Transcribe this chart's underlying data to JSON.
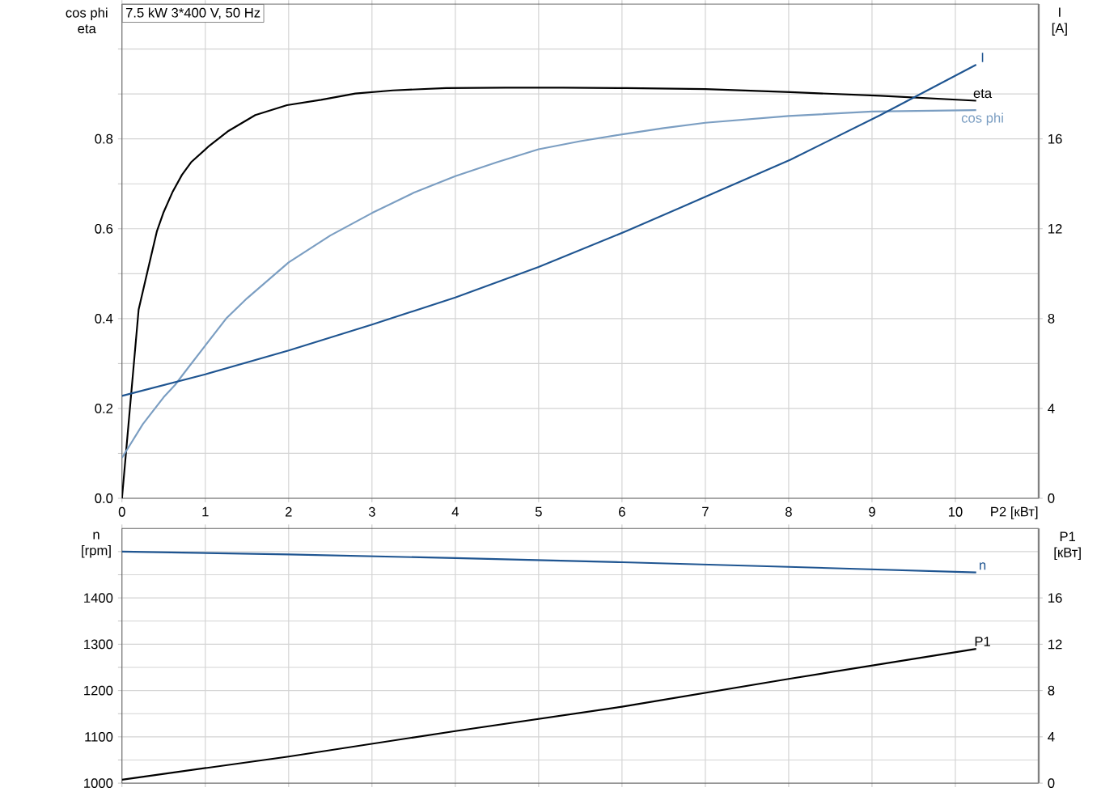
{
  "chart_data": [
    {
      "type": "line",
      "title": "7.5 kW 3*400 V, 50 Hz",
      "xlabel": "P2 [кВт]",
      "ylabel": "cos phi eta",
      "y2label": "I [A]",
      "xlim": [
        0,
        11
      ],
      "xticks": [
        0,
        1,
        2,
        3,
        4,
        5,
        6,
        7,
        8,
        9,
        10
      ],
      "ylim": [
        0,
        1.1
      ],
      "yticks": [
        {
          "value": 0,
          "label": "0.0"
        },
        {
          "value": 0.1,
          "label": null
        },
        {
          "value": 0.2,
          "label": "0.2"
        },
        {
          "value": 0.3,
          "label": null
        },
        {
          "value": 0.4,
          "label": "0.4"
        },
        {
          "value": 0.5,
          "label": null
        },
        {
          "value": 0.6,
          "label": "0.6"
        },
        {
          "value": 0.7,
          "label": null
        },
        {
          "value": 0.8,
          "label": "0.8"
        },
        {
          "value": 0.9,
          "label": null
        },
        {
          "value": 1.0,
          "label": null
        }
      ],
      "y2lim": [
        0,
        22
      ],
      "y2ticks": [
        0,
        4,
        8,
        12,
        16
      ],
      "grid": true,
      "series": [
        {
          "name": "eta",
          "color": "#000000",
          "x": [
            0,
            0.1,
            0.2,
            0.3,
            0.42,
            0.5,
            0.61,
            0.72,
            0.83,
            1.05,
            1.28,
            1.6,
            1.98,
            2.39,
            2.8,
            3.25,
            3.89,
            4.6,
            5.29,
            6.05,
            7.0,
            8.02,
            9.1,
            10.25
          ],
          "values": [
            0,
            0.21,
            0.42,
            0.5,
            0.595,
            0.637,
            0.683,
            0.72,
            0.748,
            0.785,
            0.818,
            0.853,
            0.875,
            0.887,
            0.901,
            0.908,
            0.913,
            0.914,
            0.914,
            0.913,
            0.911,
            0.904,
            0.896,
            0.885
          ]
        },
        {
          "name": "cos phi",
          "color": "#7b9ec2",
          "x": [
            0,
            0.25,
            0.5,
            0.64,
            0.75,
            1.0,
            1.25,
            1.5,
            1.75,
            2.0,
            2.5,
            3.0,
            3.5,
            4.0,
            4.5,
            5.0,
            5.5,
            6.0,
            6.5,
            7.0,
            8.0,
            9.0,
            10.25
          ],
          "values": [
            0.09,
            0.165,
            0.225,
            0.253,
            0.28,
            0.34,
            0.4,
            0.445,
            0.485,
            0.525,
            0.585,
            0.635,
            0.68,
            0.717,
            0.748,
            0.777,
            0.795,
            0.81,
            0.824,
            0.836,
            0.851,
            0.861,
            0.864
          ]
        },
        {
          "name": "I",
          "color": "#1f5591",
          "axis": "y2",
          "x": [
            0,
            1,
            2,
            3,
            4,
            5,
            6.05,
            7.0,
            8.02,
            9.1,
            10.25
          ],
          "values": [
            4.56,
            5.52,
            6.58,
            7.73,
            8.94,
            10.3,
            11.89,
            13.42,
            15.07,
            17.06,
            19.3
          ]
        }
      ]
    },
    {
      "type": "line",
      "ylabel": "n [rpm]",
      "y2label": "P1 [кВт]",
      "tick_labels": "y",
      "xlim": [
        0,
        11
      ],
      "xticks": [
        0,
        1,
        2,
        3,
        4,
        5,
        6,
        7,
        8,
        9,
        10
      ],
      "ylim": [
        1000,
        1550
      ],
      "yticks": [
        1000,
        {
          "value": 1050,
          "label": null
        },
        1100,
        {
          "value": 1150,
          "label": null
        },
        1200,
        {
          "value": 1250,
          "label": null
        },
        1300,
        {
          "value": 1350,
          "label": null
        },
        1400,
        {
          "value": 1450,
          "label": null
        },
        {
          "value": 1500,
          "label": null
        }
      ],
      "y2lim": [
        0,
        22
      ],
      "y2ticks": [
        0,
        4,
        8,
        12,
        16
      ],
      "grid": true,
      "series": [
        {
          "name": "n",
          "color": "#1f5591",
          "x": [
            0,
            2,
            4,
            6,
            8,
            10.25
          ],
          "values": [
            1500,
            1494,
            1486,
            1477,
            1467,
            1455
          ]
        },
        {
          "name": "P1",
          "color": "#000000",
          "axis": "y2",
          "x": [
            0,
            2,
            4,
            6,
            8,
            10.25
          ],
          "values": [
            0.3,
            2.3,
            4.5,
            6.6,
            9.0,
            11.6
          ]
        }
      ]
    }
  ]
}
